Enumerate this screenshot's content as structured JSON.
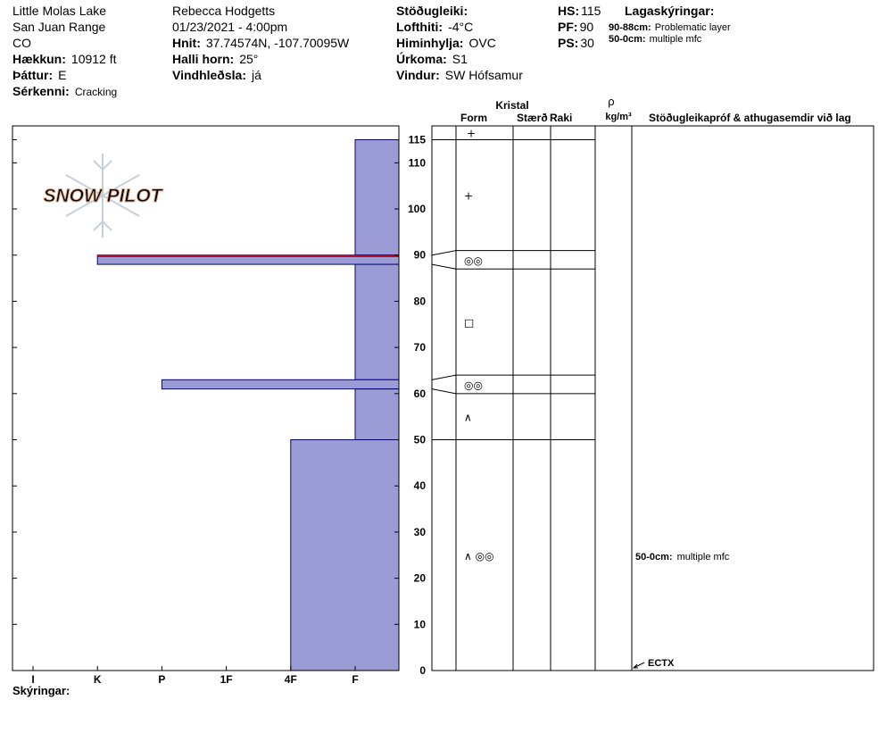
{
  "header": {
    "col1": {
      "lines": [
        "Little Molas Lake",
        "San Juan Range",
        "CO"
      ],
      "fields": [
        {
          "label": "Hækkun:",
          "value": "10912 ft"
        },
        {
          "label": "Þáttur:",
          "value": "E"
        },
        {
          "label": "Sérkenni:",
          "value": "Cracking"
        }
      ]
    },
    "col2": {
      "lines": [
        "Rebecca Hodgetts",
        "01/23/2021 - 4:00pm"
      ],
      "fields": [
        {
          "label": "Hnit:",
          "value": "37.74574N, -107.70095W"
        },
        {
          "label": "Halli horn:",
          "value": "25°"
        },
        {
          "label": "Vindhleðsla:",
          "value": "já"
        }
      ]
    },
    "col3": {
      "lines": [],
      "fields": [
        {
          "label": "Stöðugleiki:"
        },
        {
          "label": "Lofthiti:",
          "value": "-4°C"
        },
        {
          "label": "Himinhylja:",
          "value": "OVC"
        },
        {
          "label": "Úrkoma:",
          "value": "S1"
        },
        {
          "label": "Vindur:",
          "value": "SW Hófsamur"
        }
      ]
    },
    "col4": {
      "lines": [],
      "fields": [
        {
          "label": "HS:",
          "value": 115
        },
        {
          "label": "PF:",
          "value": 90
        },
        {
          "label": "PS:",
          "value": 30
        }
      ]
    },
    "col5": {
      "title": "Lagaskýringar:",
      "notes": [
        {
          "label": "90-88cm:",
          "value": "Problematic layer"
        },
        {
          "label": "50-0cm:",
          "value": "multiple mfc"
        }
      ]
    }
  },
  "chart_data": {
    "type": "snowpit",
    "watermark": "SNOW PILOT",
    "ylim": [
      0,
      118
    ],
    "yticks": [
      0,
      10,
      20,
      30,
      40,
      50,
      60,
      70,
      80,
      90,
      100,
      110,
      115
    ],
    "hardness_categories": [
      "I",
      "K",
      "P",
      "1F",
      "4F",
      "F"
    ],
    "bar_color": "#9b9bd6",
    "bar_edge": "#00007f",
    "problem_color": "#cc0000",
    "grain_headers": {
      "crystal": "Kristal",
      "form": "Form",
      "size": "Stærð",
      "moisture": "Raki",
      "density": "ρ",
      "density_unit": "kg/m³",
      "comments": "Stöðugleikapróf & athugasemdir við lag"
    },
    "surface_grain": "+",
    "layers": [
      {
        "top": 115,
        "bottom": 90,
        "hardness": "F",
        "grain": "+"
      },
      {
        "top": 90,
        "bottom": 88,
        "hardness": "K",
        "grain": "◎◎",
        "problematic": true
      },
      {
        "top": 88,
        "bottom": 63,
        "hardness": "F",
        "grain": "□"
      },
      {
        "top": 63,
        "bottom": 61,
        "hardness": "P",
        "grain": "◎◎"
      },
      {
        "top": 61,
        "bottom": 50,
        "hardness": "F",
        "grain": "∧"
      },
      {
        "top": 50,
        "bottom": 0,
        "hardness": "4F",
        "grain": "∧ ◎◎",
        "comment": {
          "label": "50-0cm:",
          "text": "multiple mfc"
        }
      }
    ],
    "tests": [
      {
        "depth": 0,
        "result": "ECTX"
      }
    ],
    "legend_title": "Skýringar:"
  }
}
